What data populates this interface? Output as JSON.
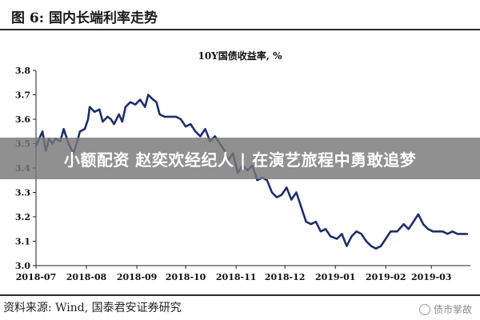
{
  "figure": {
    "title": "图 6:  国内长端利率走势",
    "source": "资料来源:  Wind,  国泰君安证券研究",
    "watermark": "债市掌故",
    "watermark_icon": "wechat-icon"
  },
  "overlay": {
    "banner_text": "小额配资 赵奕欢经纪人 | 在演艺旅程中勇敢追梦"
  },
  "chart_data": {
    "type": "line",
    "title": "10Y国债收益率, %",
    "xlabel": "",
    "ylabel": "",
    "ylim": [
      3.0,
      3.8
    ],
    "yticks": [
      "3.0",
      "3.1",
      "3.2",
      "3.3",
      "3.4",
      "3.5",
      "3.6",
      "3.7",
      "3.8"
    ],
    "xlim": [
      "2018-07-01",
      "2019-03-25"
    ],
    "xticks": [
      {
        "date": "2018-07-01",
        "label": "2018-07"
      },
      {
        "date": "2018-08-01",
        "label": "2018-08"
      },
      {
        "date": "2018-09-01",
        "label": "2018-09"
      },
      {
        "date": "2018-10-01",
        "label": "2018-10"
      },
      {
        "date": "2018-11-01",
        "label": "2018-11"
      },
      {
        "date": "2018-12-01",
        "label": "2018-12"
      },
      {
        "date": "2019-01-01",
        "label": "2019-01"
      },
      {
        "date": "2019-02-01",
        "label": "2019-02"
      },
      {
        "date": "2019-03-01",
        "label": "2019-03"
      }
    ],
    "grid": false,
    "line_color": "#1f2f6b",
    "series": [
      {
        "name": "",
        "x": [
          "2018-07-01",
          "2018-07-03",
          "2018-07-05",
          "2018-07-07",
          "2018-07-09",
          "2018-07-11",
          "2018-07-13",
          "2018-07-16",
          "2018-07-18",
          "2018-07-21",
          "2018-07-24",
          "2018-07-26",
          "2018-07-28",
          "2018-07-31",
          "2018-08-02",
          "2018-08-03",
          "2018-08-06",
          "2018-08-09",
          "2018-08-11",
          "2018-08-14",
          "2018-08-16",
          "2018-08-18",
          "2018-08-21",
          "2018-08-23",
          "2018-08-25",
          "2018-08-28",
          "2018-08-31",
          "2018-09-03",
          "2018-09-06",
          "2018-09-08",
          "2018-09-11",
          "2018-09-13",
          "2018-09-15",
          "2018-09-18",
          "2018-09-20",
          "2018-09-23",
          "2018-09-25",
          "2018-09-28",
          "2018-10-01",
          "2018-10-04",
          "2018-10-07",
          "2018-10-10",
          "2018-10-13",
          "2018-10-16",
          "2018-10-19",
          "2018-10-22",
          "2018-10-25",
          "2018-10-27",
          "2018-10-30",
          "2018-11-02",
          "2018-11-05",
          "2018-11-08",
          "2018-11-11",
          "2018-11-14",
          "2018-11-17",
          "2018-11-20",
          "2018-11-23",
          "2018-11-26",
          "2018-11-29",
          "2018-12-02",
          "2018-12-05",
          "2018-12-08",
          "2018-12-11",
          "2018-12-14",
          "2018-12-17",
          "2018-12-20",
          "2018-12-23",
          "2018-12-26",
          "2018-12-29",
          "2019-01-02",
          "2019-01-05",
          "2019-01-08",
          "2019-01-11",
          "2019-01-14",
          "2019-01-17",
          "2019-01-20",
          "2019-01-23",
          "2019-01-26",
          "2019-01-29",
          "2019-02-01",
          "2019-02-04",
          "2019-02-08",
          "2019-02-12",
          "2019-02-15",
          "2019-02-18",
          "2019-02-21",
          "2019-02-24",
          "2019-02-27",
          "2019-03-02",
          "2019-03-05",
          "2019-03-08",
          "2019-03-11",
          "2019-03-14",
          "2019-03-17",
          "2019-03-20",
          "2019-03-23"
        ],
        "values": [
          3.49,
          3.52,
          3.55,
          3.47,
          3.52,
          3.5,
          3.52,
          3.51,
          3.56,
          3.5,
          3.46,
          3.5,
          3.55,
          3.56,
          3.6,
          3.65,
          3.63,
          3.64,
          3.59,
          3.61,
          3.6,
          3.58,
          3.62,
          3.59,
          3.65,
          3.67,
          3.66,
          3.68,
          3.65,
          3.7,
          3.68,
          3.67,
          3.62,
          3.61,
          3.61,
          3.61,
          3.61,
          3.6,
          3.57,
          3.58,
          3.55,
          3.53,
          3.56,
          3.51,
          3.53,
          3.5,
          3.47,
          3.43,
          3.46,
          3.38,
          3.41,
          3.39,
          3.41,
          3.35,
          3.36,
          3.35,
          3.3,
          3.28,
          3.29,
          3.32,
          3.27,
          3.3,
          3.24,
          3.18,
          3.17,
          3.18,
          3.14,
          3.15,
          3.12,
          3.11,
          3.13,
          3.08,
          3.12,
          3.14,
          3.13,
          3.1,
          3.08,
          3.07,
          3.08,
          3.11,
          3.14,
          3.14,
          3.17,
          3.15,
          3.18,
          3.21,
          3.17,
          3.15,
          3.14,
          3.14,
          3.14,
          3.13,
          3.14,
          3.13,
          3.13,
          3.13
        ]
      }
    ]
  }
}
